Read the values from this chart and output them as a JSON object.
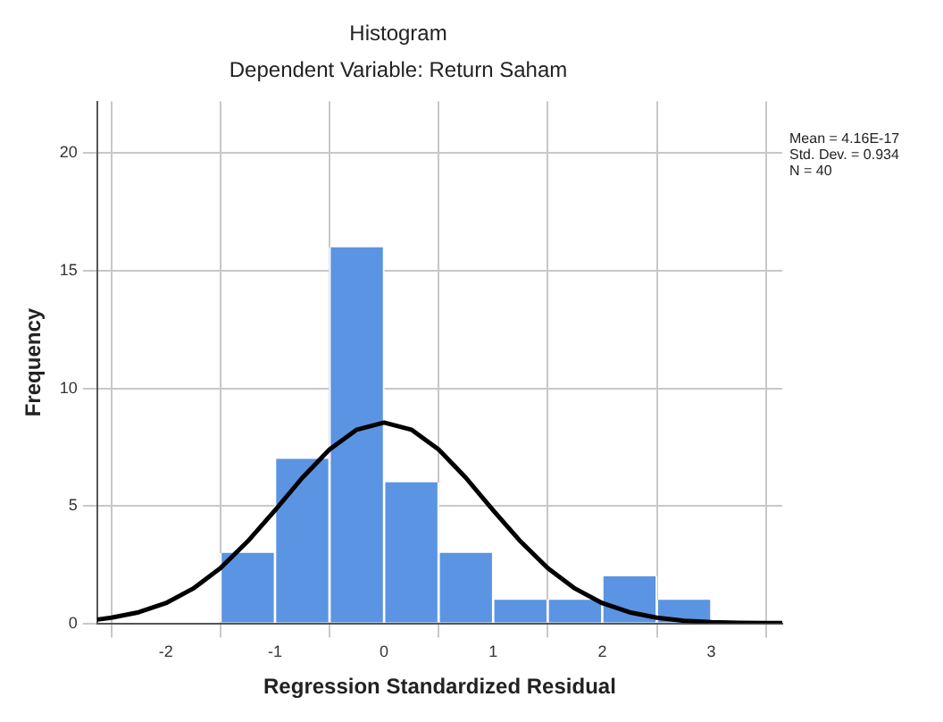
{
  "chart_data": {
    "type": "histogram",
    "title": "Histogram",
    "subtitle": "Dependent Variable: Return Saham",
    "xlabel": "Regression Standardized Residual",
    "ylabel": "Frequency",
    "bins": [
      -1.5,
      -1,
      -0.5,
      0,
      0.5,
      1,
      1.5,
      2,
      2.5,
      3
    ],
    "values": [
      3,
      7,
      16,
      6,
      3,
      1,
      1,
      2,
      1
    ],
    "color": "#5b94e2",
    "series": [
      {
        "type": "line",
        "color": "#000000",
        "x": [
          -2.63,
          -2.5,
          -2.25,
          -2,
          -1.75,
          -1.5,
          -1.25,
          -1,
          -0.75,
          -0.5,
          -0.25,
          0,
          0.25,
          0.5,
          0.75,
          1,
          1.25,
          1.5,
          1.75,
          2,
          2.25,
          2.5,
          2.75,
          3,
          3.25,
          3.5,
          3.65
        ],
        "values": [
          0.16,
          0.24,
          0.47,
          0.86,
          1.48,
          2.35,
          3.49,
          4.81,
          6.19,
          7.4,
          8.24,
          8.54,
          8.24,
          7.4,
          6.19,
          4.81,
          3.49,
          2.35,
          1.48,
          0.86,
          0.47,
          0.24,
          0.11,
          0.05,
          0.02,
          0.01,
          0.01
        ]
      }
    ],
    "xlim": [
      -2.63,
      3.65
    ],
    "xticks": [
      -2,
      -1,
      0,
      1,
      2,
      3
    ],
    "ylim": [
      0,
      22.2
    ],
    "yticks": [
      0,
      5,
      10,
      15,
      20
    ],
    "grid": true,
    "legend": false,
    "marker": "none",
    "annotations": [
      "Mean = 4.16E-17",
      "Std. Dev. = 0.934",
      "N = 40"
    ]
  }
}
